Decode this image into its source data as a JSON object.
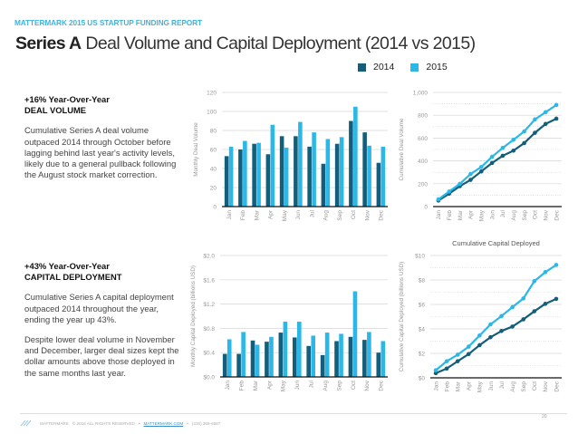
{
  "header": {
    "report_label": "MATTERMARK 2015 US STARTUP FUNDING REPORT",
    "title_bold": "Series A",
    "title_rest": " Deal Volume and Capital Deployment (2014 vs 2015)"
  },
  "legend": {
    "items": [
      {
        "label": "2014",
        "color": "#135e7a"
      },
      {
        "label": "2015",
        "color": "#2bb8e8"
      }
    ]
  },
  "blocks": {
    "deal_volume": {
      "headline_line1": "+16% Year-Over-Year",
      "headline_line2": "DEAL VOLUME",
      "paragraph": "Cumulative Series A deal volume outpaced 2014 through October before lagging behind last year's activity levels, likely due to a general pullback following the August stock market correction."
    },
    "capital": {
      "headline_line1": "+43% Year-Over-Year",
      "headline_line2": "CAPITAL DEPLOYMENT",
      "paragraph1": "Cumulative Series A capital deployment outpaced 2014 throughout the year, ending the year up 43%.",
      "paragraph2": "Despite lower deal volume in November and December, larger deal sizes kept the dollar amounts above those deployed in the same months last year."
    }
  },
  "footer": {
    "brand": "MATTERMARK",
    "copyright": "© 2016 ALL RIGHTS RESERVED",
    "separator": "•",
    "link": "MATTERMARK.COM",
    "phone": "(415) 366-6587",
    "page_number": "20"
  },
  "chart_data": [
    {
      "id": "monthly-deal-volume",
      "type": "bar",
      "title": "",
      "xlabel": "",
      "ylabel": "Monthly Deal Volume",
      "categories": [
        "Jan",
        "Feb",
        "Mar",
        "Apr",
        "May",
        "Jun",
        "Jul",
        "Aug",
        "Sep",
        "Oct",
        "Nov",
        "Dec"
      ],
      "series": [
        {
          "name": "2014",
          "color": "#135e7a",
          "values": [
            53,
            60,
            66,
            55,
            74,
            74,
            63,
            45,
            66,
            90,
            78,
            46
          ]
        },
        {
          "name": "2015",
          "color": "#2bb8e8",
          "values": [
            63,
            69,
            67,
            86,
            62,
            89,
            78,
            71,
            73,
            105,
            64,
            63
          ]
        }
      ],
      "ylim": [
        0,
        120
      ],
      "yticks": [
        0,
        20,
        40,
        60,
        80,
        100,
        120
      ],
      "ytick_labels": [
        "0",
        "20",
        "40",
        "60",
        "80",
        "100",
        "120"
      ],
      "grid": true
    },
    {
      "id": "cumulative-deal-volume",
      "type": "line",
      "title": "",
      "xlabel": "",
      "ylabel": "Cumulative Deal Volume",
      "categories": [
        "Jan",
        "Feb",
        "Mar",
        "Apr",
        "May",
        "Jun",
        "Jul",
        "Aug",
        "Sep",
        "Oct",
        "Nov",
        "Dec"
      ],
      "series": [
        {
          "name": "2014",
          "color": "#135e7a",
          "values": [
            53,
            113,
            179,
            234,
            308,
            382,
            445,
            490,
            556,
            646,
            724,
            770
          ]
        },
        {
          "name": "2015",
          "color": "#2bb8e8",
          "values": [
            63,
            132,
            199,
            285,
            347,
            436,
            514,
            585,
            658,
            763,
            827,
            890
          ]
        }
      ],
      "ylim": [
        0,
        1000
      ],
      "yticks": [
        0,
        200,
        400,
        600,
        800,
        1000
      ],
      "ytick_labels": [
        "0",
        "200",
        "400",
        "600",
        "800",
        "1,000"
      ],
      "grid": true
    },
    {
      "id": "monthly-capital-deployed",
      "type": "bar",
      "title": "",
      "xlabel": "",
      "ylabel": "Monthly Capital Deployed (billions USD)",
      "categories": [
        "Jan",
        "Feb",
        "Mar",
        "Apr",
        "May",
        "Jun",
        "Jul",
        "Aug",
        "Sep",
        "Oct",
        "Nov",
        "Dec"
      ],
      "series": [
        {
          "name": "2014",
          "color": "#135e7a",
          "values": [
            0.38,
            0.38,
            0.6,
            0.58,
            0.73,
            0.65,
            0.51,
            0.36,
            0.59,
            0.66,
            0.61,
            0.4
          ]
        },
        {
          "name": "2015",
          "color": "#2bb8e8",
          "values": [
            0.62,
            0.74,
            0.53,
            0.66,
            0.91,
            0.91,
            0.68,
            0.73,
            0.71,
            1.41,
            0.74,
            0.59
          ]
        }
      ],
      "ylim": [
        0,
        2.0
      ],
      "yticks": [
        0,
        0.4,
        0.8,
        1.2,
        1.6,
        2.0
      ],
      "ytick_labels": [
        "$0.0",
        "$0.4",
        "$0.8",
        "$1.2",
        "$1.6",
        "$2.0"
      ],
      "grid": true
    },
    {
      "id": "cumulative-capital-deployed",
      "type": "line",
      "title": "Cumulative Capital Deployed",
      "xlabel": "",
      "ylabel": "Cumulative Capital Deployed (billions USD)",
      "categories": [
        "Jan",
        "Feb",
        "Mar",
        "Apr",
        "May",
        "Jun",
        "Jul",
        "Aug",
        "Sep",
        "Oct",
        "Nov",
        "Dec"
      ],
      "series": [
        {
          "name": "2014",
          "color": "#135e7a",
          "values": [
            0.38,
            0.76,
            1.36,
            1.94,
            2.67,
            3.32,
            3.83,
            4.19,
            4.78,
            5.44,
            6.05,
            6.45
          ]
        },
        {
          "name": "2015",
          "color": "#2bb8e8",
          "values": [
            0.62,
            1.36,
            1.89,
            2.55,
            3.46,
            4.37,
            5.05,
            5.78,
            6.49,
            7.9,
            8.64,
            9.23
          ]
        }
      ],
      "ylim": [
        0,
        10
      ],
      "yticks": [
        0,
        2,
        4,
        6,
        8,
        10
      ],
      "ytick_labels": [
        "$0",
        "$2",
        "$4",
        "$6",
        "$8",
        "$10"
      ],
      "grid": true
    }
  ]
}
